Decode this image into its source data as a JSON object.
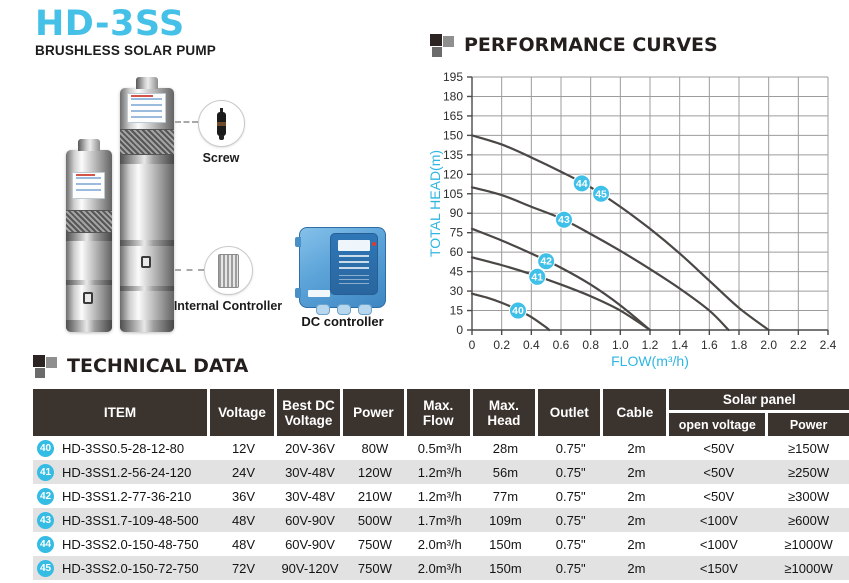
{
  "brand": {
    "title": "HD-3SS",
    "subtitle": "BRUSHLESS SOLAR PUMP",
    "accent_color": "#45c1e8"
  },
  "product": {
    "callouts": [
      {
        "label": "Screw"
      },
      {
        "label": "Internal Controller"
      }
    ],
    "dc_controller_label": "DC controller"
  },
  "performance": {
    "section_title": "PERFORMANCE CURVES"
  },
  "chart_data": {
    "type": "line",
    "title": "PERFORMANCE CURVES",
    "xlabel": "FLOW(m³/h)",
    "ylabel": "TOTAL HEAD(m)",
    "xlim": [
      0,
      2.4
    ],
    "ylim": [
      0,
      195
    ],
    "xticks": [
      0,
      0.2,
      0.4,
      0.6,
      0.8,
      1.0,
      1.2,
      1.4,
      1.6,
      1.8,
      2.0,
      2.2,
      2.4
    ],
    "xtick_labels": [
      "0",
      "0.2",
      "0.4",
      "0.6",
      "0.8",
      "1.0",
      "1.2",
      "1.4",
      "1.6",
      "1.8",
      "2.0",
      "2.2",
      "2.4"
    ],
    "yticks": [
      0,
      15,
      30,
      45,
      60,
      75,
      90,
      105,
      120,
      135,
      150,
      165,
      180,
      195
    ],
    "grid": true,
    "legend_position": "on-curve-badges",
    "axis_title_color": "#2eb6e2",
    "curve_color": "#4a4744",
    "grid_color": "#9c9c9c",
    "badge_color": "#3fc0e8",
    "series": [
      {
        "name": "40",
        "points": [
          [
            0,
            28
          ],
          [
            0.1,
            25
          ],
          [
            0.2,
            21
          ],
          [
            0.3,
            16
          ],
          [
            0.4,
            10
          ],
          [
            0.5,
            2
          ],
          [
            0.52,
            0
          ]
        ]
      },
      {
        "name": "41",
        "points": [
          [
            0,
            56
          ],
          [
            0.2,
            50
          ],
          [
            0.4,
            43
          ],
          [
            0.6,
            35
          ],
          [
            0.8,
            26
          ],
          [
            1.0,
            15
          ],
          [
            1.2,
            0
          ]
        ]
      },
      {
        "name": "42",
        "points": [
          [
            0,
            78
          ],
          [
            0.2,
            69
          ],
          [
            0.4,
            59
          ],
          [
            0.6,
            48
          ],
          [
            0.8,
            35
          ],
          [
            1.0,
            19
          ],
          [
            1.2,
            0
          ]
        ]
      },
      {
        "name": "43",
        "points": [
          [
            0,
            110
          ],
          [
            0.2,
            104
          ],
          [
            0.4,
            95
          ],
          [
            0.6,
            86
          ],
          [
            0.8,
            74
          ],
          [
            1.0,
            61
          ],
          [
            1.2,
            47
          ],
          [
            1.4,
            32
          ],
          [
            1.6,
            15
          ],
          [
            1.73,
            0
          ]
        ]
      },
      {
        "name": "44-45",
        "points": [
          [
            0,
            150
          ],
          [
            0.2,
            143
          ],
          [
            0.4,
            133
          ],
          [
            0.6,
            122
          ],
          [
            0.8,
            110
          ],
          [
            1.0,
            95
          ],
          [
            1.2,
            78
          ],
          [
            1.4,
            59
          ],
          [
            1.6,
            38
          ],
          [
            1.8,
            17
          ],
          [
            2.0,
            0
          ]
        ]
      }
    ],
    "badges": [
      {
        "label": "40",
        "x": 0.31,
        "y": 15
      },
      {
        "label": "41",
        "x": 0.44,
        "y": 41
      },
      {
        "label": "42",
        "x": 0.5,
        "y": 53
      },
      {
        "label": "43",
        "x": 0.62,
        "y": 85
      },
      {
        "label": "44",
        "x": 0.74,
        "y": 113
      },
      {
        "label": "45",
        "x": 0.87,
        "y": 105
      }
    ]
  },
  "technical": {
    "section_title": "TECHNICAL DATA",
    "columns": [
      "ITEM",
      "Voltage",
      "Best DC Voltage",
      "Power",
      "Max. Flow",
      "Max. Head",
      "Outlet",
      "Cable"
    ],
    "solar_panel_header": "Solar panel",
    "solar_sub_columns": [
      "open voltage",
      "Power"
    ],
    "header_bg": "#3b332e",
    "row_alt_bg": "#e2e2e2",
    "badge_color": "#35bce4",
    "rows": [
      {
        "badge": "40",
        "item": "HD-3SS0.5-28-12-80",
        "voltage": "12V",
        "best_dc_voltage": "20V-36V",
        "power": "80W",
        "max_flow": "0.5m³/h",
        "max_head": "28m",
        "outlet": "0.75\"",
        "cable": "2m",
        "open_voltage": "<50V",
        "solar_power": "≥150W"
      },
      {
        "badge": "41",
        "item": "HD-3SS1.2-56-24-120",
        "voltage": "24V",
        "best_dc_voltage": "30V-48V",
        "power": "120W",
        "max_flow": "1.2m³/h",
        "max_head": "56m",
        "outlet": "0.75\"",
        "cable": "2m",
        "open_voltage": "<50V",
        "solar_power": "≥250W"
      },
      {
        "badge": "42",
        "item": "HD-3SS1.2-77-36-210",
        "voltage": "36V",
        "best_dc_voltage": "30V-48V",
        "power": "210W",
        "max_flow": "1.2m³/h",
        "max_head": "77m",
        "outlet": "0.75\"",
        "cable": "2m",
        "open_voltage": "<50V",
        "solar_power": "≥300W"
      },
      {
        "badge": "43",
        "item": "HD-3SS1.7-109-48-500",
        "voltage": "48V",
        "best_dc_voltage": "60V-90V",
        "power": "500W",
        "max_flow": "1.7m³/h",
        "max_head": "109m",
        "outlet": "0.75\"",
        "cable": "2m",
        "open_voltage": "<100V",
        "solar_power": "≥600W"
      },
      {
        "badge": "44",
        "item": "HD-3SS2.0-150-48-750",
        "voltage": "48V",
        "best_dc_voltage": "60V-90V",
        "power": "750W",
        "max_flow": "2.0m³/h",
        "max_head": "150m",
        "outlet": "0.75\"",
        "cable": "2m",
        "open_voltage": "<100V",
        "solar_power": "≥1000W"
      },
      {
        "badge": "45",
        "item": "HD-3SS2.0-150-72-750",
        "voltage": "72V",
        "best_dc_voltage": "90V-120V",
        "power": "750W",
        "max_flow": "2.0m³/h",
        "max_head": "150m",
        "outlet": "0.75\"",
        "cable": "2m",
        "open_voltage": "<150V",
        "solar_power": "≥1000W"
      }
    ]
  }
}
